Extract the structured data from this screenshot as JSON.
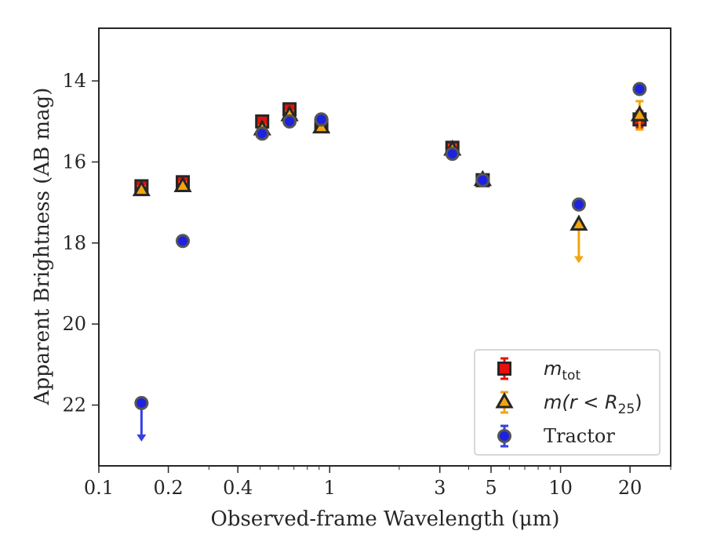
{
  "chart_data": {
    "type": "scatter",
    "title": "",
    "xlabel": "Observed-frame Wavelength (μm)",
    "ylabel": "Apparent Brightness (AB mag)",
    "xscale": "log",
    "yaxis_inverted": true,
    "xlim": [
      0.1,
      30
    ],
    "ylim": [
      23.5,
      12.7
    ],
    "xticks": [
      {
        "value": 0.1,
        "label": "0.1"
      },
      {
        "value": 0.2,
        "label": "0.2"
      },
      {
        "value": 0.4,
        "label": "0.4"
      },
      {
        "value": 1,
        "label": "1"
      },
      {
        "value": 3,
        "label": "3"
      },
      {
        "value": 5,
        "label": "5"
      },
      {
        "value": 10,
        "label": "10"
      },
      {
        "value": 20,
        "label": "20"
      }
    ],
    "yticks": [
      {
        "value": 14,
        "label": "14"
      },
      {
        "value": 16,
        "label": "16"
      },
      {
        "value": 18,
        "label": "18"
      },
      {
        "value": 20,
        "label": "20"
      },
      {
        "value": 22,
        "label": "22"
      }
    ],
    "legend_position": "lower right",
    "grid": false,
    "series": [
      {
        "name": "m_tot",
        "legend_label": "m",
        "legend_sub": "tot",
        "marker": "square",
        "face_color": "#e8100c",
        "edge_color": "#262626",
        "error_color": "#e8100c",
        "points": [
          {
            "x": 0.153,
            "y": 16.6,
            "err": 0.1
          },
          {
            "x": 0.231,
            "y": 16.5,
            "err": 0.1
          },
          {
            "x": 0.51,
            "y": 15.0,
            "err": 0.1
          },
          {
            "x": 0.67,
            "y": 14.7,
            "err": 0.1
          },
          {
            "x": 0.92,
            "y": 15.1,
            "err": 0.1
          },
          {
            "x": 3.4,
            "y": 15.65,
            "err": 0.1
          },
          {
            "x": 4.6,
            "y": 16.45,
            "err": 0.1
          },
          {
            "x": 22.0,
            "y": 14.95,
            "err": 0.2
          }
        ]
      },
      {
        "name": "m(r < R25)",
        "legend_label": "m(r < R",
        "legend_sub": "25",
        "legend_close": ")",
        "marker": "triangle",
        "face_color": "#f2a50e",
        "edge_color": "#262626",
        "error_color": "#f2a50e",
        "points": [
          {
            "x": 0.153,
            "y": 16.7,
            "err": 0.1
          },
          {
            "x": 0.231,
            "y": 16.6,
            "err": 0.1
          },
          {
            "x": 0.51,
            "y": 15.2,
            "err": 0.1
          },
          {
            "x": 0.67,
            "y": 14.85,
            "err": 0.1
          },
          {
            "x": 0.92,
            "y": 15.15,
            "err": 0.1
          },
          {
            "x": 3.4,
            "y": 15.7,
            "err": 0.1
          },
          {
            "x": 4.6,
            "y": 16.45,
            "err": 0.1
          },
          {
            "x": 12.0,
            "y": 17.55,
            "upper_limit": true,
            "arrow_to": 18.5
          },
          {
            "x": 22.0,
            "y": 14.85,
            "err": 0.35
          }
        ]
      },
      {
        "name": "Tractor",
        "legend_label": "Tractor",
        "marker": "circle",
        "face_color": "#1d22e0",
        "edge_color": "#555555",
        "error_color": "#3340e6",
        "points": [
          {
            "x": 0.153,
            "y": 21.95,
            "upper_limit": true,
            "arrow_to": 22.9
          },
          {
            "x": 0.231,
            "y": 17.95,
            "err": 0.1
          },
          {
            "x": 0.51,
            "y": 15.3,
            "err": 0.1
          },
          {
            "x": 0.67,
            "y": 15.0,
            "err": 0.1
          },
          {
            "x": 0.92,
            "y": 14.95,
            "err": 0.1
          },
          {
            "x": 3.4,
            "y": 15.8,
            "err": 0.1
          },
          {
            "x": 4.6,
            "y": 16.45,
            "err": 0.1
          },
          {
            "x": 12.0,
            "y": 17.05,
            "err": 0.1
          },
          {
            "x": 22.0,
            "y": 14.2,
            "err": 0.1
          }
        ]
      }
    ]
  }
}
